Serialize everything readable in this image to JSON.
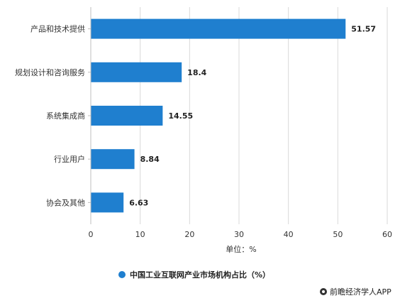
{
  "chart_data": {
    "type": "bar",
    "orientation": "horizontal",
    "categories": [
      "产品和技术提供",
      "规划设计和咨询服务",
      "系统集成商",
      "行业用户",
      "协会及其他"
    ],
    "values": [
      51.57,
      18.4,
      14.55,
      8.84,
      6.63
    ],
    "value_labels": [
      "51.57",
      "18.4",
      "14.55",
      "8.84",
      "6.63"
    ],
    "xlim": [
      0,
      60
    ],
    "x_ticks": [
      "0",
      "10",
      "20",
      "30",
      "40",
      "50",
      "60"
    ],
    "xlabel": "单位：%",
    "grid": true,
    "series": [
      {
        "name": "中国工业互联网产业市场机构占比（%）",
        "values": [
          51.57,
          18.4,
          14.55,
          8.84,
          6.63
        ]
      }
    ],
    "legend_position": "bottom-center",
    "bar_color": "#1f7fcf"
  },
  "source": "前瞻经济学人APP"
}
